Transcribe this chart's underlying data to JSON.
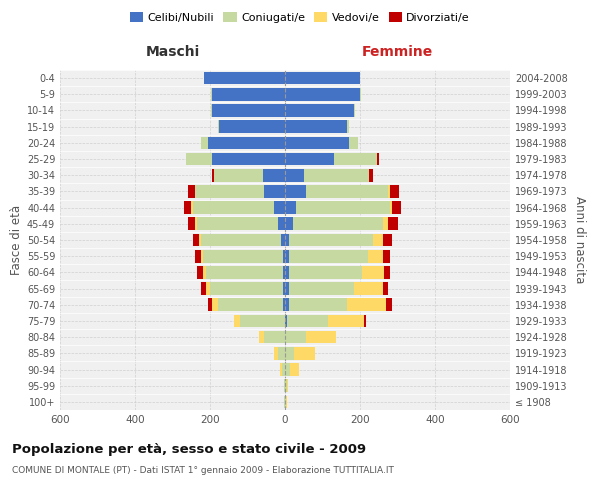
{
  "age_groups": [
    "100+",
    "95-99",
    "90-94",
    "85-89",
    "80-84",
    "75-79",
    "70-74",
    "65-69",
    "60-64",
    "55-59",
    "50-54",
    "45-49",
    "40-44",
    "35-39",
    "30-34",
    "25-29",
    "20-24",
    "15-19",
    "10-14",
    "5-9",
    "0-4"
  ],
  "birth_years": [
    "≤ 1908",
    "1909-1913",
    "1914-1918",
    "1919-1923",
    "1924-1928",
    "1929-1933",
    "1934-1938",
    "1939-1943",
    "1944-1948",
    "1949-1953",
    "1954-1958",
    "1959-1963",
    "1964-1968",
    "1969-1973",
    "1974-1978",
    "1979-1983",
    "1984-1988",
    "1989-1993",
    "1994-1998",
    "1999-2003",
    "2004-2008"
  ],
  "male": {
    "celibi": [
      0,
      0,
      0,
      0,
      0,
      0,
      5,
      5,
      5,
      5,
      10,
      20,
      30,
      55,
      60,
      195,
      205,
      175,
      195,
      195,
      215
    ],
    "coniugati": [
      2,
      3,
      8,
      20,
      55,
      120,
      175,
      195,
      205,
      215,
      215,
      215,
      215,
      185,
      130,
      70,
      20,
      5,
      2,
      2,
      0
    ],
    "vedovi": [
      0,
      0,
      5,
      10,
      15,
      15,
      15,
      10,
      10,
      5,
      5,
      5,
      5,
      0,
      0,
      0,
      0,
      0,
      0,
      0,
      0
    ],
    "divorziati": [
      0,
      0,
      0,
      0,
      0,
      0,
      10,
      15,
      15,
      15,
      15,
      20,
      20,
      20,
      5,
      0,
      0,
      0,
      0,
      0,
      0
    ]
  },
  "female": {
    "nubili": [
      0,
      0,
      0,
      0,
      0,
      5,
      10,
      10,
      10,
      10,
      10,
      20,
      30,
      55,
      50,
      130,
      170,
      165,
      185,
      200,
      200
    ],
    "coniugate": [
      2,
      4,
      12,
      25,
      55,
      110,
      155,
      175,
      195,
      210,
      225,
      240,
      250,
      220,
      175,
      115,
      25,
      5,
      2,
      2,
      0
    ],
    "vedove": [
      3,
      5,
      25,
      55,
      80,
      95,
      105,
      75,
      60,
      40,
      25,
      15,
      5,
      5,
      0,
      0,
      0,
      0,
      0,
      0,
      0
    ],
    "divorziate": [
      0,
      0,
      0,
      0,
      0,
      5,
      15,
      15,
      15,
      20,
      25,
      25,
      25,
      25,
      10,
      5,
      0,
      0,
      0,
      0,
      0
    ]
  },
  "colors": {
    "celibi": "#4472C4",
    "coniugati": "#c5d9a0",
    "vedovi": "#FFD966",
    "divorziati": "#C00000"
  },
  "title": "Popolazione per età, sesso e stato civile - 2009",
  "subtitle": "COMUNE DI MONTALE (PT) - Dati ISTAT 1° gennaio 2009 - Elaborazione TUTTITALIA.IT",
  "xlabel_left": "Maschi",
  "xlabel_right": "Femmine",
  "ylabel_left": "Fasce di età",
  "ylabel_right": "Anni di nascita",
  "xlim": 600,
  "legend_labels": [
    "Celibi/Nubili",
    "Coniugati/e",
    "Vedovi/e",
    "Divorziati/e"
  ],
  "bg_color": "#f0f0f0",
  "grid_color": "#cccccc"
}
